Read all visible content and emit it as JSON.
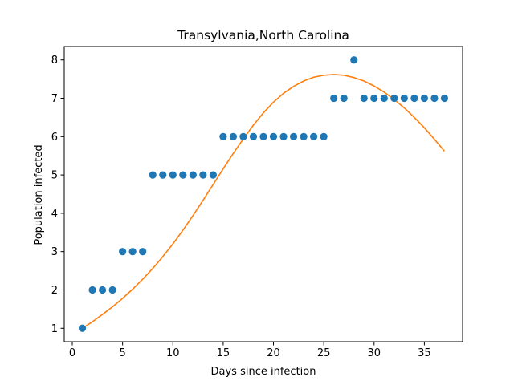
{
  "chart_data": {
    "type": "scatter",
    "title": "Transylvania,North Carolina",
    "xlabel": "Days since infection",
    "ylabel": "Population infected",
    "xlim": [
      -0.8,
      38.8
    ],
    "ylim": [
      0.65,
      8.35
    ],
    "xticks": [
      0,
      5,
      10,
      15,
      20,
      25,
      30,
      35
    ],
    "yticks": [
      1,
      2,
      3,
      4,
      5,
      6,
      7,
      8
    ],
    "grid": false,
    "legend": "none",
    "series": [
      {
        "kind": "points",
        "color": "#1f77b4",
        "x": [
          1,
          2,
          3,
          4,
          5,
          6,
          7,
          8,
          9,
          10,
          11,
          12,
          13,
          14,
          15,
          16,
          17,
          18,
          19,
          20,
          21,
          22,
          23,
          24,
          25,
          26,
          27,
          28,
          29,
          30,
          31,
          32,
          33,
          34,
          35,
          36,
          37
        ],
        "y": [
          1,
          2,
          2,
          2,
          3,
          3,
          3,
          5,
          5,
          5,
          5,
          5,
          5,
          5,
          6,
          6,
          6,
          6,
          6,
          6,
          6,
          6,
          6,
          6,
          6,
          7,
          7,
          8,
          7,
          7,
          7,
          7,
          7,
          7,
          7,
          7,
          7
        ]
      },
      {
        "kind": "fit-line",
        "color": "#ff7f0e",
        "x": [
          1,
          2,
          3,
          4,
          5,
          6,
          7,
          8,
          9,
          10,
          11,
          12,
          13,
          14,
          15,
          16,
          17,
          18,
          19,
          20,
          21,
          22,
          23,
          24,
          25,
          26,
          27,
          28,
          29,
          30,
          31,
          32,
          33,
          34,
          35,
          36,
          37
        ],
        "y": [
          1.0,
          1.17,
          1.36,
          1.56,
          1.78,
          2.02,
          2.28,
          2.56,
          2.87,
          3.2,
          3.56,
          3.94,
          4.34,
          4.75,
          5.16,
          5.56,
          5.94,
          6.3,
          6.62,
          6.9,
          7.13,
          7.31,
          7.45,
          7.55,
          7.6,
          7.62,
          7.6,
          7.54,
          7.45,
          7.32,
          7.16,
          6.97,
          6.75,
          6.5,
          6.23,
          5.93,
          5.62
        ]
      }
    ]
  }
}
